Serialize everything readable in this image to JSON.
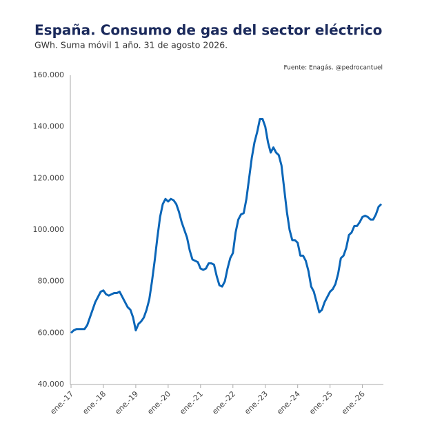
{
  "chart_data": {
    "type": "line",
    "title": "España. Consumo de gas del sector eléctrico",
    "subtitle": "GWh. Suma móvil 1 año. 31 de agosto 2026.",
    "source": "Fuente: Enagás. @pedrocantuel",
    "x": [
      "2017-01",
      "2017-02",
      "2017-03",
      "2017-04",
      "2017-05",
      "2017-06",
      "2017-07",
      "2017-08",
      "2017-09",
      "2017-10",
      "2017-11",
      "2017-12",
      "2018-01",
      "2018-02",
      "2018-03",
      "2018-04",
      "2018-05",
      "2018-06",
      "2018-07",
      "2018-08",
      "2018-09",
      "2018-10",
      "2018-11",
      "2018-12",
      "2019-01",
      "2019-02",
      "2019-03",
      "2019-04",
      "2019-05",
      "2019-06",
      "2019-07",
      "2019-08",
      "2019-09",
      "2019-10",
      "2019-11",
      "2019-12",
      "2020-01",
      "2020-02",
      "2020-03",
      "2020-04",
      "2020-05",
      "2020-06",
      "2020-07",
      "2020-08",
      "2020-09",
      "2020-10",
      "2020-11",
      "2020-12",
      "2021-01",
      "2021-02",
      "2021-03",
      "2021-04",
      "2021-05",
      "2021-06",
      "2021-07",
      "2021-08",
      "2021-09",
      "2021-10",
      "2021-11",
      "2021-12",
      "2022-01",
      "2022-02",
      "2022-03",
      "2022-04",
      "2022-05",
      "2022-06",
      "2022-07",
      "2022-08",
      "2022-09",
      "2022-10",
      "2022-11",
      "2022-12",
      "2023-01",
      "2023-02",
      "2023-03",
      "2023-04",
      "2023-05",
      "2023-06",
      "2023-07",
      "2023-08",
      "2023-09",
      "2023-10",
      "2023-11",
      "2023-12",
      "2024-01",
      "2024-02",
      "2024-03",
      "2024-04",
      "2024-05",
      "2024-06",
      "2024-07",
      "2024-08",
      "2024-09",
      "2024-10",
      "2024-11",
      "2024-12",
      "2025-01",
      "2025-02",
      "2025-03",
      "2025-04",
      "2025-05",
      "2025-06",
      "2025-07",
      "2025-08",
      "2025-09",
      "2025-10",
      "2025-11",
      "2025-12",
      "2026-01",
      "2026-02",
      "2026-03",
      "2026-04",
      "2026-05",
      "2026-06",
      "2026-07",
      "2026-08"
    ],
    "series": [
      {
        "name": "Consumo",
        "color": "#0b66b8",
        "values": [
          60000,
          61000,
          61500,
          61500,
          61500,
          61500,
          63000,
          66000,
          69000,
          72000,
          74000,
          76000,
          76500,
          75000,
          74500,
          75000,
          75500,
          75500,
          76000,
          74000,
          72000,
          70000,
          69000,
          66000,
          61000,
          63500,
          64500,
          66000,
          69000,
          73000,
          80000,
          88000,
          97000,
          105000,
          110000,
          112000,
          111000,
          112000,
          111500,
          110000,
          107000,
          103000,
          100000,
          97000,
          92000,
          88500,
          88000,
          87500,
          85000,
          84500,
          85000,
          87000,
          87000,
          86500,
          82000,
          78500,
          78000,
          80000,
          85000,
          89000,
          91000,
          99000,
          104000,
          106000,
          106500,
          112000,
          120000,
          128000,
          134000,
          138000,
          143000,
          143000,
          140000,
          134000,
          130000,
          132000,
          130000,
          129000,
          125000,
          116000,
          107000,
          100000,
          96000,
          96000,
          95000,
          90000,
          90000,
          88000,
          84000,
          78000,
          76000,
          72000,
          68000,
          69000,
          72000,
          74000,
          76000,
          77000,
          79000,
          83000,
          89000,
          90000,
          93000,
          98000,
          99000,
          101500,
          101500,
          103000,
          105000,
          105500,
          105000,
          104000,
          104000,
          106000,
          109000,
          110000
        ]
      }
    ],
    "xlim": [
      "2017-01",
      "2026-08"
    ],
    "xticks": [
      {
        "value": "2017-01",
        "label": "ene.-17"
      },
      {
        "value": "2018-01",
        "label": "ene.-18"
      },
      {
        "value": "2019-01",
        "label": "ene.-19"
      },
      {
        "value": "2020-01",
        "label": "ene.-20"
      },
      {
        "value": "2021-01",
        "label": "ene.-21"
      },
      {
        "value": "2022-01",
        "label": "ene.-22"
      },
      {
        "value": "2023-01",
        "label": "ene.-23"
      },
      {
        "value": "2024-01",
        "label": "ene.-24"
      },
      {
        "value": "2025-01",
        "label": "ene.-25"
      },
      {
        "value": "2026-01",
        "label": "ene.-26"
      }
    ],
    "ylim": [
      40000,
      160000
    ],
    "yticks": [
      {
        "value": 40000,
        "label": "40.000"
      },
      {
        "value": 60000,
        "label": "60.000"
      },
      {
        "value": 80000,
        "label": "80.000"
      },
      {
        "value": 100000,
        "label": "100.000"
      },
      {
        "value": 120000,
        "label": "120.000"
      },
      {
        "value": 140000,
        "label": "140.000"
      },
      {
        "value": 160000,
        "label": "160.000"
      }
    ],
    "grid": false
  }
}
